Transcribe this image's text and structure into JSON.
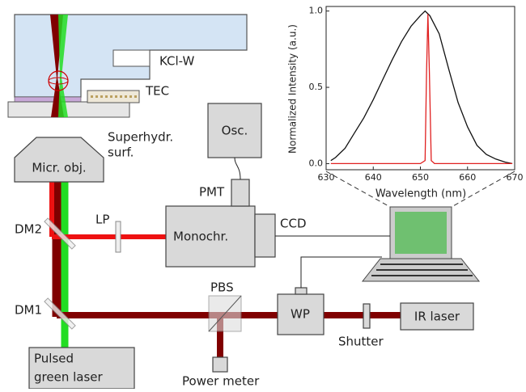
{
  "labels": {
    "kcl_window": "KCl-W",
    "tec": "TEC",
    "surface": [
      "Superhydr.",
      "surf."
    ],
    "oscilloscope": "Osc.",
    "objective": "Micr. obj.",
    "pmt": "PMT",
    "ccd": "CCD",
    "long_pass": "LP",
    "monochromator": "Monochr.",
    "dm2": "DM2",
    "dm1": "DM1",
    "pbs": "PBS",
    "waveplate": "WP",
    "shutter": "Shutter",
    "ir_laser": "IR laser",
    "green_laser": [
      "Pulsed",
      "green laser"
    ],
    "power_meter": "Power meter"
  },
  "inset_chart": {
    "type": "line",
    "xlabel": "Wavelength (nm)",
    "ylabel": "Normalized Intensity (a.u.)",
    "xlim": [
      630,
      670
    ],
    "xticks": [
      630,
      640,
      650,
      660,
      670
    ],
    "ylim": [
      -0.04,
      1.03
    ],
    "yticks": [
      {
        "value": 0,
        "label": "0.0"
      },
      {
        "value": 0.5,
        "label": "0.5"
      },
      {
        "value": 1,
        "label": "1.0"
      }
    ],
    "series": [
      {
        "color": "#111111",
        "x": [
          631,
          632,
          634,
          636,
          638,
          640,
          642,
          644,
          646,
          648,
          650,
          651,
          652,
          654,
          656,
          658,
          660,
          662,
          664,
          666,
          668,
          669.5
        ],
        "values": [
          0.02,
          0.04,
          0.1,
          0.2,
          0.3,
          0.42,
          0.55,
          0.68,
          0.8,
          0.9,
          0.97,
          1.0,
          0.97,
          0.85,
          0.62,
          0.4,
          0.24,
          0.12,
          0.06,
          0.03,
          0.01,
          0.0
        ]
      },
      {
        "color": "#e02020",
        "x": [
          631,
          650,
          651,
          651.3,
          651.6,
          651.9,
          652.3,
          653,
          669.5
        ],
        "values": [
          0.0,
          0.0,
          0.02,
          0.6,
          0.98,
          0.6,
          0.02,
          0.0,
          0.0
        ]
      }
    ]
  }
}
